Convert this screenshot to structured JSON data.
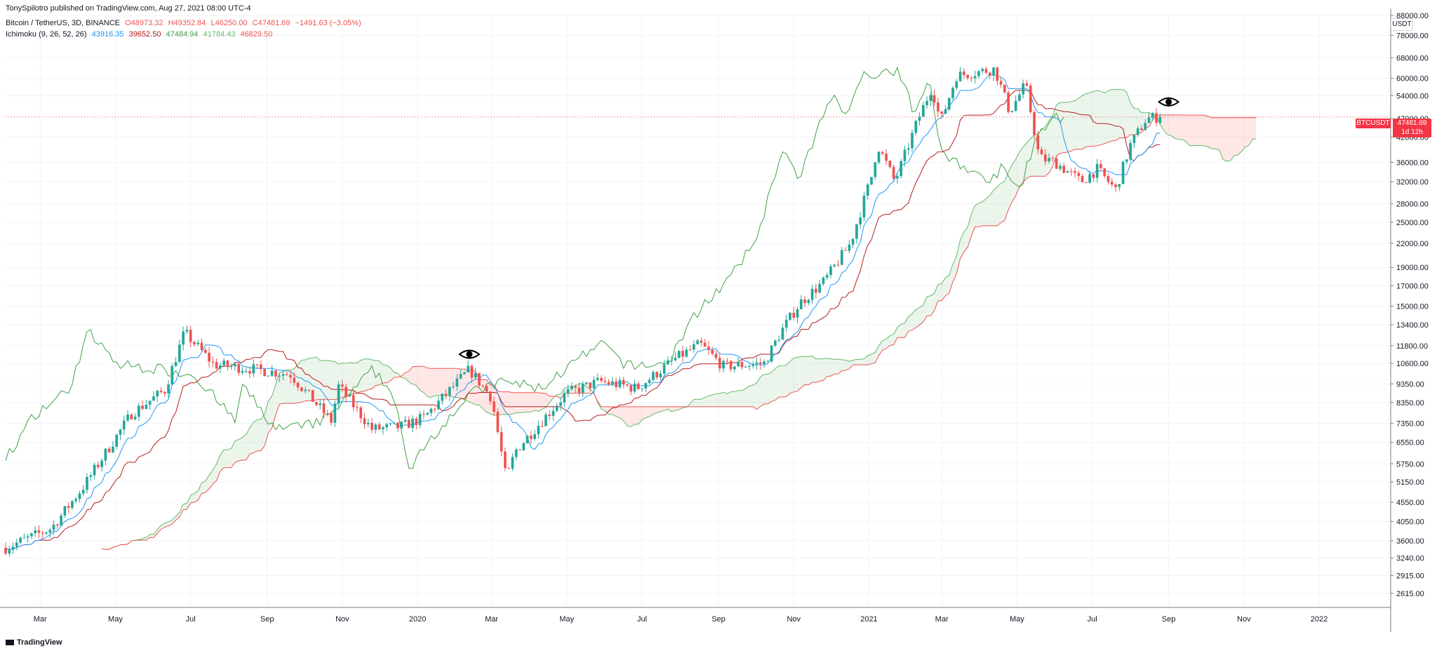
{
  "header": {
    "publish_line": "TonySpilotro published on TradingView.com, Aug 27, 2021 08:00 UTC-4",
    "symbol": "Bitcoin / TetherUS, 3D, BINANCE",
    "ohlc": {
      "open": "O48973.32",
      "high": "H49352.84",
      "low": "L46250.00",
      "close": "C47481.69",
      "change": "−1491.63 (−3.05%)"
    },
    "ichimoku": {
      "label": "Ichimoku (9, 26, 52, 26)",
      "conversion": "43916.35",
      "base": "39652.50",
      "lagging": "47484.94",
      "lead1": "41784.43",
      "lead2": "46829.50"
    }
  },
  "price_axis": {
    "currency": "USDT",
    "last_price": "47481.69",
    "countdown": "1d 12h",
    "symbol_tag": "BTCUSDT"
  },
  "footer": {
    "brand": "TradingView"
  },
  "colors": {
    "up": "#26a69a",
    "down": "#ef5350",
    "conversion": "#2196f3",
    "base": "#b71c1c",
    "lagging": "#43a047",
    "lead1": "#66bb6a",
    "lead2": "#ef5350",
    "cloud_bull": "rgba(67,160,71,0.10)",
    "cloud_bear": "rgba(244,67,54,0.12)"
  },
  "chart_data": {
    "type": "candlestick",
    "title": "Bitcoin / TetherUS, 3D, BINANCE",
    "scale": "log",
    "ylim": [
      2400,
      88000
    ],
    "x_tick_labels": [
      "Mar",
      "May",
      "Jul",
      "Sep",
      "Nov",
      "2020",
      "Mar",
      "May",
      "Jul",
      "Sep",
      "Nov",
      "2021",
      "Mar",
      "May",
      "Jul",
      "Sep",
      "Nov",
      "2022"
    ],
    "y_tick_labels": [
      "2615.00",
      "2915.00",
      "3240.00",
      "3600.00",
      "4050.00",
      "4550.00",
      "5150.00",
      "5750.00",
      "6550.00",
      "7350.00",
      "8350.00",
      "9350.00",
      "10600.00",
      "11800.00",
      "13400.00",
      "15000.00",
      "17000.00",
      "19000.00",
      "22000.00",
      "25000.00",
      "28000.00",
      "32000.00",
      "36000.00",
      "42000.00",
      "47000.00",
      "54000.00",
      "60000.00",
      "68000.00",
      "78000.00",
      "88000.00"
    ],
    "close_anchor_dates": [
      "2019-02-01",
      "2019-03-10",
      "2019-04-05",
      "2019-05-14",
      "2019-06-10",
      "2019-06-26",
      "2019-07-20",
      "2019-08-15",
      "2019-09-20",
      "2019-10-24",
      "2019-10-28",
      "2019-11-25",
      "2019-12-18",
      "2020-01-06",
      "2020-02-12",
      "2020-03-01",
      "2020-03-13",
      "2020-03-20",
      "2020-04-30",
      "2020-05-28",
      "2020-06-27",
      "2020-07-28",
      "2020-08-17",
      "2020-09-05",
      "2020-10-08",
      "2020-10-22",
      "2020-11-06",
      "2020-11-26",
      "2020-12-17",
      "2021-01-03",
      "2021-01-08",
      "2021-01-22",
      "2021-02-09",
      "2021-02-21",
      "2021-02-28",
      "2021-03-13",
      "2021-04-13",
      "2021-04-25",
      "2021-05-08",
      "2021-05-19",
      "2021-06-01",
      "2021-06-22",
      "2021-07-05",
      "2021-07-20",
      "2021-08-01",
      "2021-08-14",
      "2021-08-27"
    ],
    "close_anchor_values": [
      3450,
      3880,
      5000,
      7800,
      9000,
      12800,
      10500,
      10300,
      9900,
      7400,
      9300,
      7100,
      7200,
      7600,
      10200,
      8600,
      5200,
      6200,
      8800,
      9500,
      9100,
      10900,
      11900,
      10400,
      10600,
      12900,
      15300,
      17500,
      22000,
      33000,
      40000,
      32000,
      46000,
      57000,
      46000,
      61000,
      63500,
      49000,
      58000,
      37000,
      36000,
      32000,
      34500,
      30500,
      40000,
      47000,
      47481.69
    ],
    "ichimoku": {
      "conversion_last": 43916.35,
      "base_last": 39652.5,
      "lagging_last": 47484.94,
      "lead1_last": 41784.43,
      "lead2_last": 46829.5
    }
  }
}
